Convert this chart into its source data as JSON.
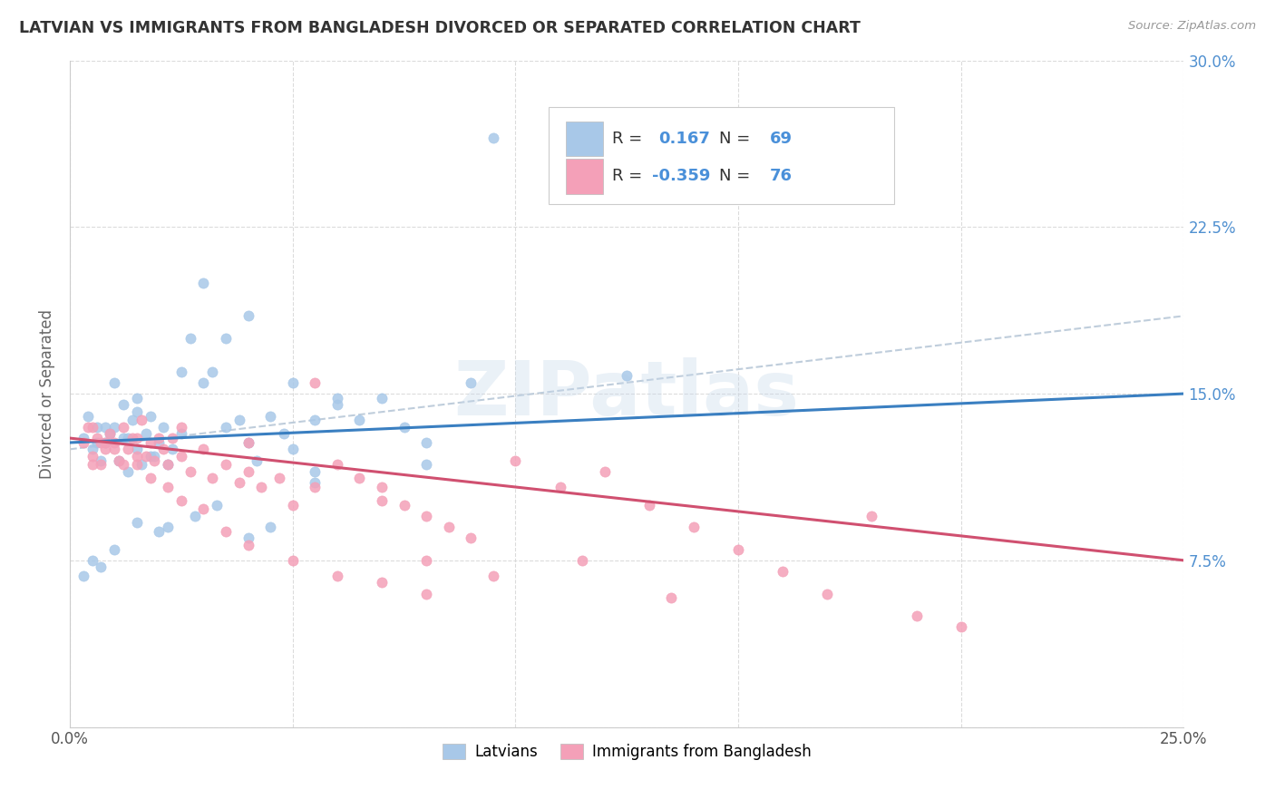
{
  "title": "LATVIAN VS IMMIGRANTS FROM BANGLADESH DIVORCED OR SEPARATED CORRELATION CHART",
  "source": "Source: ZipAtlas.com",
  "ylabel": "Divorced or Separated",
  "xlim": [
    0.0,
    0.25
  ],
  "ylim": [
    0.0,
    0.3
  ],
  "latvian_R": "0.167",
  "latvian_N": "69",
  "bangladesh_R": "-0.359",
  "bangladesh_N": "76",
  "latvian_color": "#a8c8e8",
  "bangladesh_color": "#f4a0b8",
  "latvian_line_color": "#3a7fc1",
  "bangladesh_line_color": "#d05070",
  "trend_dashed_color": "#b8c8d8",
  "watermark": "ZIPatlas",
  "text_color": "#333333",
  "source_color": "#999999",
  "right_axis_color": "#5090d0",
  "background_color": "#ffffff",
  "grid_color": "#d8d8d8",
  "legend_text_color": "#333333",
  "legend_value_color": "#4a90d9",
  "latvian_x": [
    0.003,
    0.004,
    0.005,
    0.006,
    0.007,
    0.008,
    0.009,
    0.01,
    0.011,
    0.012,
    0.013,
    0.013,
    0.014,
    0.015,
    0.015,
    0.016,
    0.017,
    0.018,
    0.019,
    0.02,
    0.021,
    0.022,
    0.023,
    0.025,
    0.027,
    0.03,
    0.032,
    0.035,
    0.038,
    0.04,
    0.042,
    0.045,
    0.048,
    0.05,
    0.055,
    0.06,
    0.065,
    0.07,
    0.075,
    0.08,
    0.05,
    0.03,
    0.04,
    0.035,
    0.055,
    0.025,
    0.015,
    0.01,
    0.008,
    0.006,
    0.012,
    0.018,
    0.022,
    0.028,
    0.033,
    0.045,
    0.095,
    0.125,
    0.08,
    0.055,
    0.04,
    0.02,
    0.015,
    0.01,
    0.005,
    0.007,
    0.003,
    0.06,
    0.09
  ],
  "latvian_y": [
    0.13,
    0.14,
    0.125,
    0.135,
    0.12,
    0.128,
    0.132,
    0.135,
    0.12,
    0.145,
    0.13,
    0.115,
    0.138,
    0.125,
    0.142,
    0.118,
    0.132,
    0.14,
    0.122,
    0.128,
    0.135,
    0.118,
    0.125,
    0.132,
    0.175,
    0.155,
    0.16,
    0.135,
    0.138,
    0.128,
    0.12,
    0.14,
    0.132,
    0.125,
    0.115,
    0.145,
    0.138,
    0.148,
    0.135,
    0.128,
    0.155,
    0.2,
    0.185,
    0.175,
    0.138,
    0.16,
    0.148,
    0.155,
    0.135,
    0.128,
    0.13,
    0.122,
    0.09,
    0.095,
    0.1,
    0.09,
    0.265,
    0.158,
    0.118,
    0.11,
    0.085,
    0.088,
    0.092,
    0.08,
    0.075,
    0.072,
    0.068,
    0.148,
    0.155
  ],
  "bangladesh_x": [
    0.003,
    0.004,
    0.005,
    0.006,
    0.007,
    0.008,
    0.009,
    0.01,
    0.011,
    0.012,
    0.013,
    0.014,
    0.015,
    0.016,
    0.017,
    0.018,
    0.019,
    0.02,
    0.021,
    0.022,
    0.023,
    0.025,
    0.027,
    0.03,
    0.032,
    0.035,
    0.038,
    0.04,
    0.043,
    0.047,
    0.05,
    0.055,
    0.06,
    0.065,
    0.07,
    0.075,
    0.08,
    0.085,
    0.09,
    0.1,
    0.11,
    0.12,
    0.13,
    0.14,
    0.15,
    0.16,
    0.17,
    0.18,
    0.19,
    0.2,
    0.005,
    0.008,
    0.012,
    0.015,
    0.018,
    0.022,
    0.025,
    0.03,
    0.035,
    0.04,
    0.05,
    0.06,
    0.07,
    0.08,
    0.04,
    0.025,
    0.015,
    0.01,
    0.007,
    0.005,
    0.055,
    0.07,
    0.08,
    0.095,
    0.115,
    0.135
  ],
  "bangladesh_y": [
    0.128,
    0.135,
    0.122,
    0.13,
    0.118,
    0.125,
    0.132,
    0.128,
    0.12,
    0.135,
    0.125,
    0.13,
    0.118,
    0.138,
    0.122,
    0.128,
    0.12,
    0.13,
    0.125,
    0.118,
    0.13,
    0.122,
    0.115,
    0.125,
    0.112,
    0.118,
    0.11,
    0.115,
    0.108,
    0.112,
    0.1,
    0.155,
    0.118,
    0.112,
    0.108,
    0.1,
    0.095,
    0.09,
    0.085,
    0.12,
    0.108,
    0.115,
    0.1,
    0.09,
    0.08,
    0.07,
    0.06,
    0.095,
    0.05,
    0.045,
    0.135,
    0.128,
    0.118,
    0.122,
    0.112,
    0.108,
    0.102,
    0.098,
    0.088,
    0.082,
    0.075,
    0.068,
    0.065,
    0.06,
    0.128,
    0.135,
    0.13,
    0.125,
    0.128,
    0.118,
    0.108,
    0.102,
    0.075,
    0.068,
    0.075,
    0.058
  ],
  "latvian_trend": [
    0.128,
    0.15
  ],
  "bangladesh_trend": [
    0.13,
    0.075
  ],
  "dashed_trend": [
    0.125,
    0.185
  ]
}
